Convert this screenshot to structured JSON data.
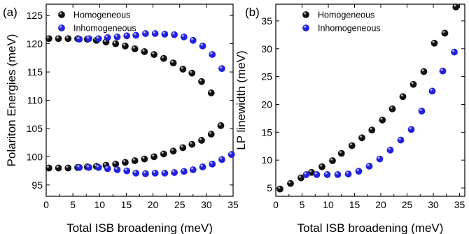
{
  "chart_data": [
    {
      "type": "scatter",
      "panel_label": "(a)",
      "xlabel": "Total ISB broadening (meV)",
      "ylabel": "Polariton Energies (meV)",
      "xlim": [
        0,
        35
      ],
      "ylim": [
        93,
        127
      ],
      "xticks": [
        0,
        5,
        10,
        15,
        20,
        25,
        30,
        35
      ],
      "yticks": [
        95,
        100,
        105,
        110,
        115,
        120,
        125
      ],
      "legend_position": "top-left",
      "series": [
        {
          "name": "Homogeneous",
          "color": "#111111",
          "points": [
            [
              0.5,
              120.9
            ],
            [
              2.3,
              120.9
            ],
            [
              4.1,
              120.9
            ],
            [
              5.9,
              120.9
            ],
            [
              7.7,
              120.8
            ],
            [
              9.4,
              120.6
            ],
            [
              11.2,
              120.3
            ],
            [
              13.0,
              120.0
            ],
            [
              14.8,
              119.6
            ],
            [
              16.6,
              119.1
            ],
            [
              18.4,
              118.6
            ],
            [
              20.2,
              118.1
            ],
            [
              22.0,
              117.4
            ],
            [
              23.8,
              116.6
            ],
            [
              25.6,
              115.5
            ],
            [
              27.3,
              114.8
            ],
            [
              29.1,
              113.3
            ],
            [
              30.9,
              111.3
            ],
            [
              0.5,
              98.0
            ],
            [
              2.3,
              98.0
            ],
            [
              4.1,
              98.0
            ],
            [
              5.9,
              98.1
            ],
            [
              7.7,
              98.2
            ],
            [
              9.4,
              98.3
            ],
            [
              11.2,
              98.5
            ],
            [
              13.0,
              98.7
            ],
            [
              14.8,
              99.0
            ],
            [
              16.6,
              99.3
            ],
            [
              18.4,
              99.6
            ],
            [
              20.2,
              100.0
            ],
            [
              22.0,
              100.5
            ],
            [
              23.8,
              101.0
            ],
            [
              25.6,
              101.6
            ],
            [
              27.3,
              102.2
            ],
            [
              29.1,
              102.9
            ],
            [
              30.9,
              104.0
            ],
            [
              32.7,
              105.5
            ]
          ]
        },
        {
          "name": "Inhomogeneous",
          "color": "#2222dd",
          "points": [
            [
              6.2,
              120.8
            ],
            [
              8.0,
              120.9
            ],
            [
              9.8,
              120.9
            ],
            [
              11.5,
              121.1
            ],
            [
              13.3,
              121.2
            ],
            [
              15.1,
              121.4
            ],
            [
              16.8,
              121.5
            ],
            [
              18.6,
              121.8
            ],
            [
              20.4,
              121.8
            ],
            [
              22.2,
              121.7
            ],
            [
              24.0,
              121.6
            ],
            [
              25.8,
              121.2
            ],
            [
              27.5,
              120.6
            ],
            [
              29.3,
              119.6
            ],
            [
              31.1,
              118.1
            ],
            [
              32.9,
              115.6
            ],
            [
              6.2,
              98.1
            ],
            [
              8.0,
              98.1
            ],
            [
              9.8,
              98.1
            ],
            [
              11.5,
              97.9
            ],
            [
              13.3,
              97.7
            ],
            [
              15.1,
              97.5
            ],
            [
              16.8,
              97.1
            ],
            [
              18.6,
              97.0
            ],
            [
              20.4,
              97.1
            ],
            [
              22.2,
              97.1
            ],
            [
              24.0,
              97.2
            ],
            [
              25.8,
              97.4
            ],
            [
              27.5,
              97.7
            ],
            [
              29.3,
              98.2
            ],
            [
              31.1,
              98.7
            ],
            [
              32.9,
              99.5
            ],
            [
              34.7,
              100.4
            ]
          ]
        }
      ]
    },
    {
      "type": "scatter",
      "panel_label": "(b)",
      "xlabel": "Total ISB broadening (meV)",
      "ylabel": "LP linewidth (meV)",
      "xlim": [
        0,
        36
      ],
      "ylim": [
        3.5,
        38
      ],
      "xticks": [
        0,
        5,
        10,
        15,
        20,
        25,
        30,
        35
      ],
      "yticks": [
        5,
        10,
        15,
        20,
        25,
        30,
        35
      ],
      "legend_position": "top-left",
      "series": [
        {
          "name": "Homogeneous",
          "color": "#111111",
          "points": [
            [
              0.8,
              4.8
            ],
            [
              2.8,
              5.8
            ],
            [
              4.8,
              6.8
            ],
            [
              6.8,
              7.8
            ],
            [
              8.8,
              8.8
            ],
            [
              10.8,
              9.9
            ],
            [
              12.5,
              11.2
            ],
            [
              14.5,
              12.6
            ],
            [
              16.4,
              14.0
            ],
            [
              18.3,
              15.4
            ],
            [
              20.3,
              17.2
            ],
            [
              22.2,
              19.2
            ],
            [
              24.2,
              21.4
            ],
            [
              26.2,
              23.6
            ],
            [
              28.2,
              25.9
            ],
            [
              30.2,
              31.0
            ],
            [
              32.2,
              32.8
            ],
            [
              34.3,
              37.5
            ]
          ]
        },
        {
          "name": "Inhomogeneous",
          "color": "#2222dd",
          "points": [
            [
              5.8,
              7.4
            ],
            [
              7.8,
              7.4
            ],
            [
              9.8,
              7.4
            ],
            [
              11.8,
              7.4
            ],
            [
              13.8,
              7.5
            ],
            [
              15.8,
              8.0
            ],
            [
              17.8,
              8.9
            ],
            [
              19.8,
              10.2
            ],
            [
              21.8,
              11.8
            ],
            [
              23.8,
              13.6
            ],
            [
              25.8,
              15.5
            ],
            [
              27.8,
              18.8
            ],
            [
              29.8,
              22.4
            ],
            [
              31.8,
              26.0
            ],
            [
              34.0,
              29.4
            ]
          ]
        }
      ]
    }
  ]
}
